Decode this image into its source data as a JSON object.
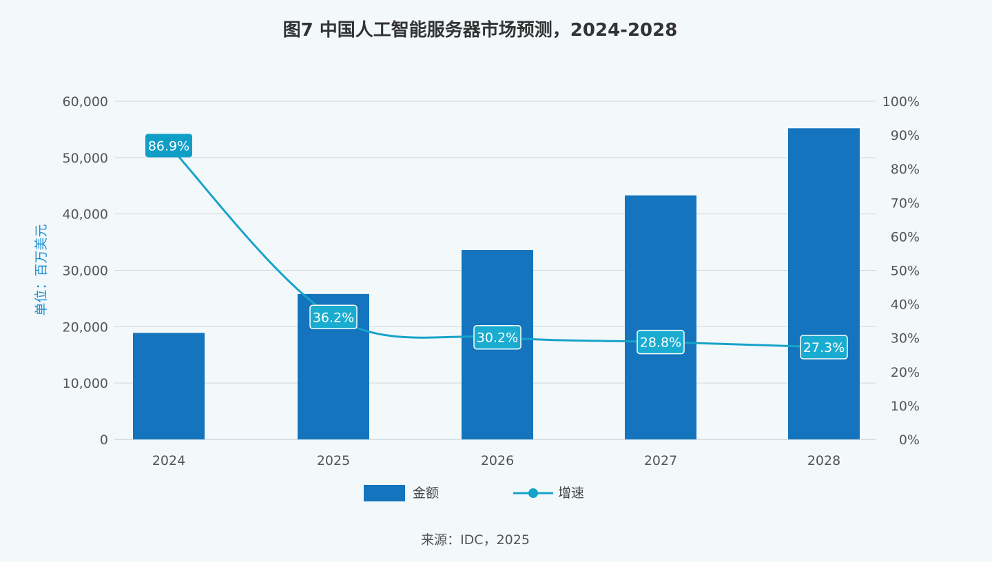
{
  "title": "图7 中国人工智能服务器市场预测，2024-2028",
  "unit_label": "单位：百万美元",
  "source": "来源：IDC，2025",
  "colors": {
    "bar": "#1474bd",
    "line": "#16a3c9",
    "label_first_bg": "#0f9fc6",
    "label_bg": "#19acd0",
    "grid": "#cfd9e0",
    "axis_text": "#555555",
    "unit_text": "#1a8fd0"
  },
  "chart_data": {
    "type": "bar",
    "title": "图7 中国人工智能服务器市场预测，2024-2028",
    "categories": [
      "2024",
      "2025",
      "2026",
      "2027",
      "2028"
    ],
    "series": [
      {
        "name": "金额",
        "type": "bar",
        "axis": "left",
        "values": [
          18900,
          25800,
          33600,
          43300,
          55200
        ]
      },
      {
        "name": "增速",
        "type": "line",
        "axis": "right",
        "values": [
          86.9,
          36.2,
          30.2,
          28.8,
          27.3
        ],
        "labels": [
          "86.9%",
          "36.2%",
          "30.2%",
          "28.8%",
          "27.3%"
        ]
      }
    ],
    "y_left": {
      "label": "单位：百万美元",
      "ylim": [
        0,
        60000
      ],
      "ticks": [
        "0",
        "10,000",
        "20,000",
        "30,000",
        "40,000",
        "50,000",
        "60,000"
      ]
    },
    "y_right": {
      "label": "",
      "ylim": [
        0,
        100
      ],
      "ticks": [
        "0%",
        "10%",
        "20%",
        "30%",
        "40%",
        "50%",
        "60%",
        "70%",
        "80%",
        "90%",
        "100%"
      ]
    },
    "legend": {
      "placement": "bottom-center",
      "entries": [
        "金额",
        "增速"
      ]
    },
    "grid": true
  }
}
